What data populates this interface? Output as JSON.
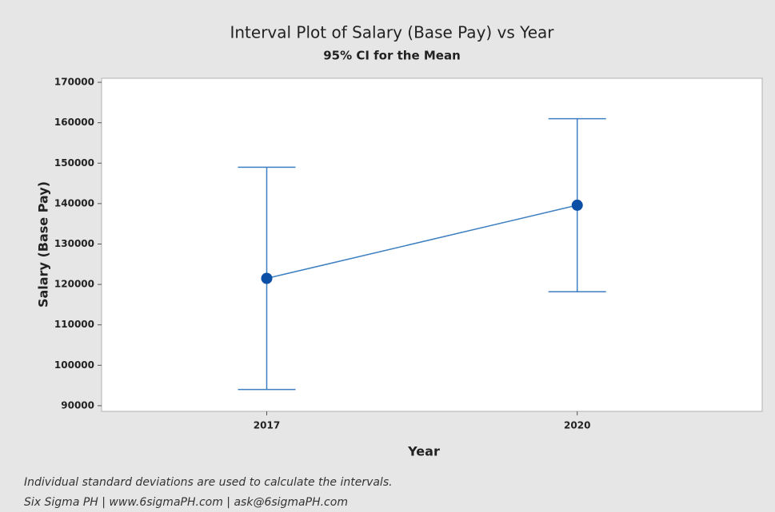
{
  "chart_data": {
    "type": "interval",
    "title": "Interval Plot of Salary (Base Pay) vs Year",
    "subtitle": "95% CI for the Mean",
    "x_label": "Year",
    "y_label": "Salary (Base Pay)",
    "categories": [
      "2017",
      "2020"
    ],
    "values": [
      121500,
      139600
    ],
    "errors": [
      27500,
      21400
    ],
    "color": "#3d7fc1",
    "marker_color": "#0b4fa6",
    "ylim": [
      88600,
      171000
    ],
    "yticks": [
      90000,
      100000,
      110000,
      120000,
      130000,
      140000,
      150000,
      160000,
      170000
    ],
    "notes": [
      "Individual standard deviations are used to calculate the intervals.",
      "Six Sigma PH  |  www.6sigmaPH.com  |  ask@6sigmaPH.com"
    ]
  }
}
